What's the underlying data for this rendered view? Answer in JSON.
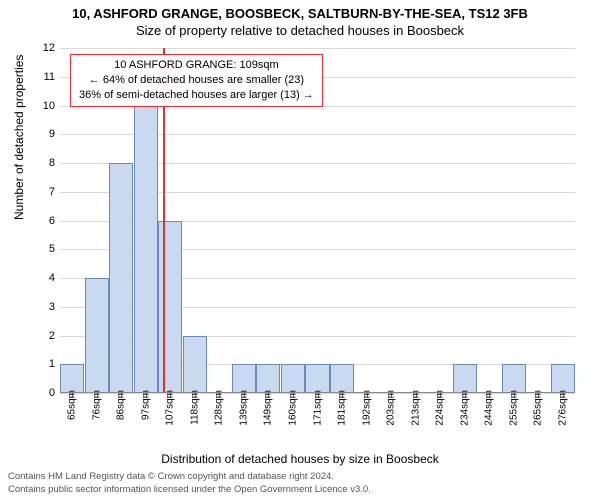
{
  "header": {
    "address": "10, ASHFORD GRANGE, BOOSBECK, SALTBURN-BY-THE-SEA, TS12 3FB",
    "subtitle": "Size of property relative to detached houses in Boosbeck"
  },
  "chart": {
    "type": "histogram",
    "y_axis": {
      "label": "Number of detached properties",
      "min": 0,
      "max": 12,
      "tick_step": 1
    },
    "x_axis": {
      "label": "Distribution of detached houses by size in Boosbeck",
      "ticks": [
        "65sqm",
        "76sqm",
        "86sqm",
        "97sqm",
        "107sqm",
        "118sqm",
        "128sqm",
        "139sqm",
        "149sqm",
        "160sqm",
        "171sqm",
        "181sqm",
        "192sqm",
        "203sqm",
        "213sqm",
        "224sqm",
        "234sqm",
        "244sqm",
        "255sqm",
        "265sqm",
        "276sqm"
      ]
    },
    "bars": [
      {
        "x_index": 0,
        "count": 1
      },
      {
        "x_index": 1,
        "count": 4
      },
      {
        "x_index": 2,
        "count": 8
      },
      {
        "x_index": 3,
        "count": 10
      },
      {
        "x_index": 4,
        "count": 6
      },
      {
        "x_index": 5,
        "count": 2
      },
      {
        "x_index": 7,
        "count": 1
      },
      {
        "x_index": 8,
        "count": 1
      },
      {
        "x_index": 9,
        "count": 1
      },
      {
        "x_index": 10,
        "count": 1
      },
      {
        "x_index": 11,
        "count": 1
      },
      {
        "x_index": 16,
        "count": 1
      },
      {
        "x_index": 18,
        "count": 1
      },
      {
        "x_index": 20,
        "count": 1
      }
    ],
    "bar_fill": "#c9d9ef",
    "bar_border": "#6a8bb8",
    "grid_color": "#d9d9d9",
    "background": "#ffffff",
    "reference": {
      "x_index": 4.2,
      "line_color": "#d33",
      "lines": [
        "10 ASHFORD GRANGE: 109sqm",
        "← 64% of detached houses are smaller (23)",
        "36% of semi-detached houses are larger (13) →"
      ]
    }
  },
  "footer": {
    "line1": "Contains HM Land Registry data © Crown copyright and database right 2024.",
    "line2": "Contains public sector information licensed under the Open Government Licence v3.0."
  }
}
